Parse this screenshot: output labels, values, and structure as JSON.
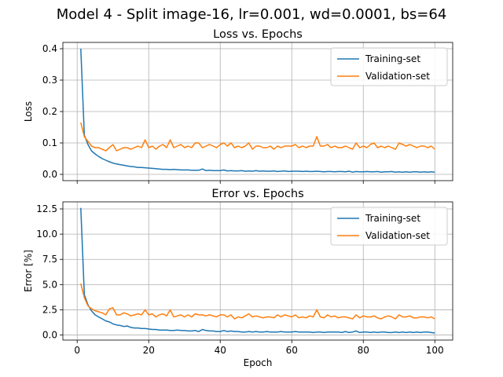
{
  "suptitle": "Model 4 - Split image-16, lr=0.001, wd=0.0001, bs=64",
  "chart_data": [
    {
      "type": "line",
      "title": "Loss vs. Epochs",
      "xlabel": "",
      "ylabel": "Loss",
      "xlim": [
        -4,
        105
      ],
      "ylim": [
        -0.02,
        0.42
      ],
      "xticks": [
        0,
        20,
        40,
        60,
        80,
        100
      ],
      "xtick_labels": [
        "",
        "",
        "",
        "",
        "",
        ""
      ],
      "yticks": [
        0.0,
        0.1,
        0.2,
        0.3,
        0.4
      ],
      "ytick_labels": [
        "0.0",
        "0.1",
        "0.2",
        "0.3",
        "0.4"
      ],
      "grid": true,
      "legend_position": "upper right",
      "x": [
        1,
        2,
        3,
        4,
        5,
        6,
        7,
        8,
        9,
        10,
        11,
        12,
        13,
        14,
        15,
        16,
        17,
        18,
        19,
        20,
        21,
        22,
        23,
        24,
        25,
        26,
        27,
        28,
        29,
        30,
        31,
        32,
        33,
        34,
        35,
        36,
        37,
        38,
        39,
        40,
        41,
        42,
        43,
        44,
        45,
        46,
        47,
        48,
        49,
        50,
        51,
        52,
        53,
        54,
        55,
        56,
        57,
        58,
        59,
        60,
        61,
        62,
        63,
        64,
        65,
        66,
        67,
        68,
        69,
        70,
        71,
        72,
        73,
        74,
        75,
        76,
        77,
        78,
        79,
        80,
        81,
        82,
        83,
        84,
        85,
        86,
        87,
        88,
        89,
        90,
        91,
        92,
        93,
        94,
        95,
        96,
        97,
        98,
        99,
        100
      ],
      "series": [
        {
          "name": "Training-set",
          "color": "#1f77b4",
          "values": [
            0.4,
            0.125,
            0.095,
            0.075,
            0.065,
            0.057,
            0.05,
            0.045,
            0.04,
            0.036,
            0.033,
            0.031,
            0.029,
            0.027,
            0.025,
            0.024,
            0.022,
            0.022,
            0.021,
            0.02,
            0.019,
            0.018,
            0.017,
            0.016,
            0.016,
            0.015,
            0.016,
            0.015,
            0.014,
            0.014,
            0.014,
            0.013,
            0.013,
            0.013,
            0.017,
            0.012,
            0.013,
            0.012,
            0.012,
            0.012,
            0.014,
            0.011,
            0.012,
            0.011,
            0.011,
            0.012,
            0.01,
            0.011,
            0.01,
            0.012,
            0.01,
            0.011,
            0.01,
            0.01,
            0.011,
            0.009,
            0.01,
            0.011,
            0.009,
            0.01,
            0.01,
            0.01,
            0.009,
            0.01,
            0.009,
            0.009,
            0.01,
            0.009,
            0.008,
            0.009,
            0.009,
            0.008,
            0.009,
            0.009,
            0.008,
            0.01,
            0.007,
            0.009,
            0.008,
            0.008,
            0.009,
            0.008,
            0.008,
            0.009,
            0.007,
            0.008,
            0.008,
            0.009,
            0.007,
            0.008,
            0.007,
            0.008,
            0.007,
            0.008,
            0.008,
            0.007,
            0.008,
            0.007,
            0.008,
            0.007
          ]
        },
        {
          "name": "Validation-set",
          "color": "#ff7f0e",
          "values": [
            0.165,
            0.12,
            0.105,
            0.09,
            0.085,
            0.085,
            0.08,
            0.075,
            0.085,
            0.095,
            0.075,
            0.08,
            0.085,
            0.085,
            0.08,
            0.085,
            0.09,
            0.085,
            0.11,
            0.085,
            0.09,
            0.08,
            0.09,
            0.095,
            0.085,
            0.11,
            0.085,
            0.09,
            0.095,
            0.085,
            0.09,
            0.085,
            0.1,
            0.1,
            0.085,
            0.09,
            0.095,
            0.09,
            0.085,
            0.095,
            0.1,
            0.09,
            0.1,
            0.085,
            0.09,
            0.085,
            0.09,
            0.1,
            0.08,
            0.09,
            0.09,
            0.085,
            0.085,
            0.09,
            0.08,
            0.09,
            0.085,
            0.09,
            0.09,
            0.09,
            0.095,
            0.085,
            0.09,
            0.085,
            0.09,
            0.09,
            0.12,
            0.09,
            0.09,
            0.095,
            0.085,
            0.09,
            0.085,
            0.085,
            0.09,
            0.085,
            0.08,
            0.1,
            0.085,
            0.09,
            0.085,
            0.095,
            0.1,
            0.085,
            0.09,
            0.085,
            0.09,
            0.085,
            0.08,
            0.1,
            0.095,
            0.09,
            0.095,
            0.09,
            0.085,
            0.09,
            0.09,
            0.085,
            0.09,
            0.08
          ]
        }
      ]
    },
    {
      "type": "line",
      "title": "Error vs. Epochs",
      "xlabel": "Epoch",
      "ylabel": "Error [%]",
      "xlim": [
        -4,
        105
      ],
      "ylim": [
        -0.5,
        13.2
      ],
      "xticks": [
        0,
        20,
        40,
        60,
        80,
        100
      ],
      "xtick_labels": [
        "0",
        "20",
        "40",
        "60",
        "80",
        "100"
      ],
      "yticks": [
        0.0,
        2.5,
        5.0,
        7.5,
        10.0,
        12.5
      ],
      "ytick_labels": [
        "0.0",
        "2.5",
        "5.0",
        "7.5",
        "10.0",
        "12.5"
      ],
      "grid": true,
      "legend_position": "upper right",
      "x": [
        1,
        2,
        3,
        4,
        5,
        6,
        7,
        8,
        9,
        10,
        11,
        12,
        13,
        14,
        15,
        16,
        17,
        18,
        19,
        20,
        21,
        22,
        23,
        24,
        25,
        26,
        27,
        28,
        29,
        30,
        31,
        32,
        33,
        34,
        35,
        36,
        37,
        38,
        39,
        40,
        41,
        42,
        43,
        44,
        45,
        46,
        47,
        48,
        49,
        50,
        51,
        52,
        53,
        54,
        55,
        56,
        57,
        58,
        59,
        60,
        61,
        62,
        63,
        64,
        65,
        66,
        67,
        68,
        69,
        70,
        71,
        72,
        73,
        74,
        75,
        76,
        77,
        78,
        79,
        80,
        81,
        82,
        83,
        84,
        85,
        86,
        87,
        88,
        89,
        90,
        91,
        92,
        93,
        94,
        95,
        96,
        97,
        98,
        99,
        100
      ],
      "series": [
        {
          "name": "Training-set",
          "color": "#1f77b4",
          "values": [
            12.6,
            4.0,
            3.0,
            2.4,
            2.0,
            1.8,
            1.6,
            1.4,
            1.3,
            1.1,
            1.0,
            0.95,
            0.85,
            0.9,
            0.75,
            0.7,
            0.7,
            0.65,
            0.65,
            0.6,
            0.55,
            0.55,
            0.5,
            0.5,
            0.5,
            0.45,
            0.45,
            0.5,
            0.45,
            0.45,
            0.4,
            0.4,
            0.45,
            0.35,
            0.55,
            0.45,
            0.4,
            0.4,
            0.35,
            0.35,
            0.45,
            0.35,
            0.4,
            0.35,
            0.35,
            0.3,
            0.3,
            0.35,
            0.3,
            0.35,
            0.3,
            0.3,
            0.35,
            0.3,
            0.3,
            0.3,
            0.35,
            0.3,
            0.3,
            0.3,
            0.35,
            0.3,
            0.3,
            0.3,
            0.3,
            0.25,
            0.3,
            0.3,
            0.25,
            0.3,
            0.3,
            0.3,
            0.3,
            0.25,
            0.35,
            0.25,
            0.3,
            0.4,
            0.25,
            0.3,
            0.3,
            0.25,
            0.3,
            0.25,
            0.3,
            0.3,
            0.25,
            0.25,
            0.3,
            0.25,
            0.3,
            0.25,
            0.3,
            0.25,
            0.3,
            0.25,
            0.3,
            0.3,
            0.25,
            0.2
          ]
        },
        {
          "name": "Validation-set",
          "color": "#ff7f0e",
          "values": [
            5.1,
            3.7,
            2.9,
            2.6,
            2.4,
            2.3,
            2.2,
            2.0,
            2.6,
            2.7,
            2.0,
            2.0,
            2.2,
            2.1,
            1.9,
            2.0,
            2.1,
            2.0,
            2.5,
            2.0,
            2.1,
            1.8,
            2.0,
            2.1,
            1.9,
            2.5,
            1.8,
            1.9,
            2.0,
            1.8,
            2.0,
            1.8,
            2.1,
            2.0,
            2.0,
            1.9,
            2.0,
            1.9,
            1.8,
            2.0,
            2.0,
            1.8,
            2.0,
            1.6,
            1.8,
            1.7,
            1.9,
            2.1,
            1.8,
            1.9,
            1.8,
            1.7,
            1.8,
            1.8,
            1.7,
            2.0,
            1.8,
            2.0,
            1.9,
            1.8,
            2.0,
            1.7,
            1.8,
            1.7,
            1.9,
            1.8,
            2.5,
            1.8,
            1.7,
            2.0,
            1.8,
            1.9,
            1.7,
            1.8,
            1.8,
            1.7,
            1.6,
            2.0,
            1.7,
            1.9,
            1.8,
            1.8,
            1.9,
            1.7,
            1.6,
            1.8,
            1.9,
            1.8,
            1.6,
            2.0,
            1.8,
            1.8,
            1.9,
            1.7,
            1.7,
            1.8,
            1.8,
            1.7,
            1.8,
            1.6
          ]
        }
      ]
    }
  ]
}
